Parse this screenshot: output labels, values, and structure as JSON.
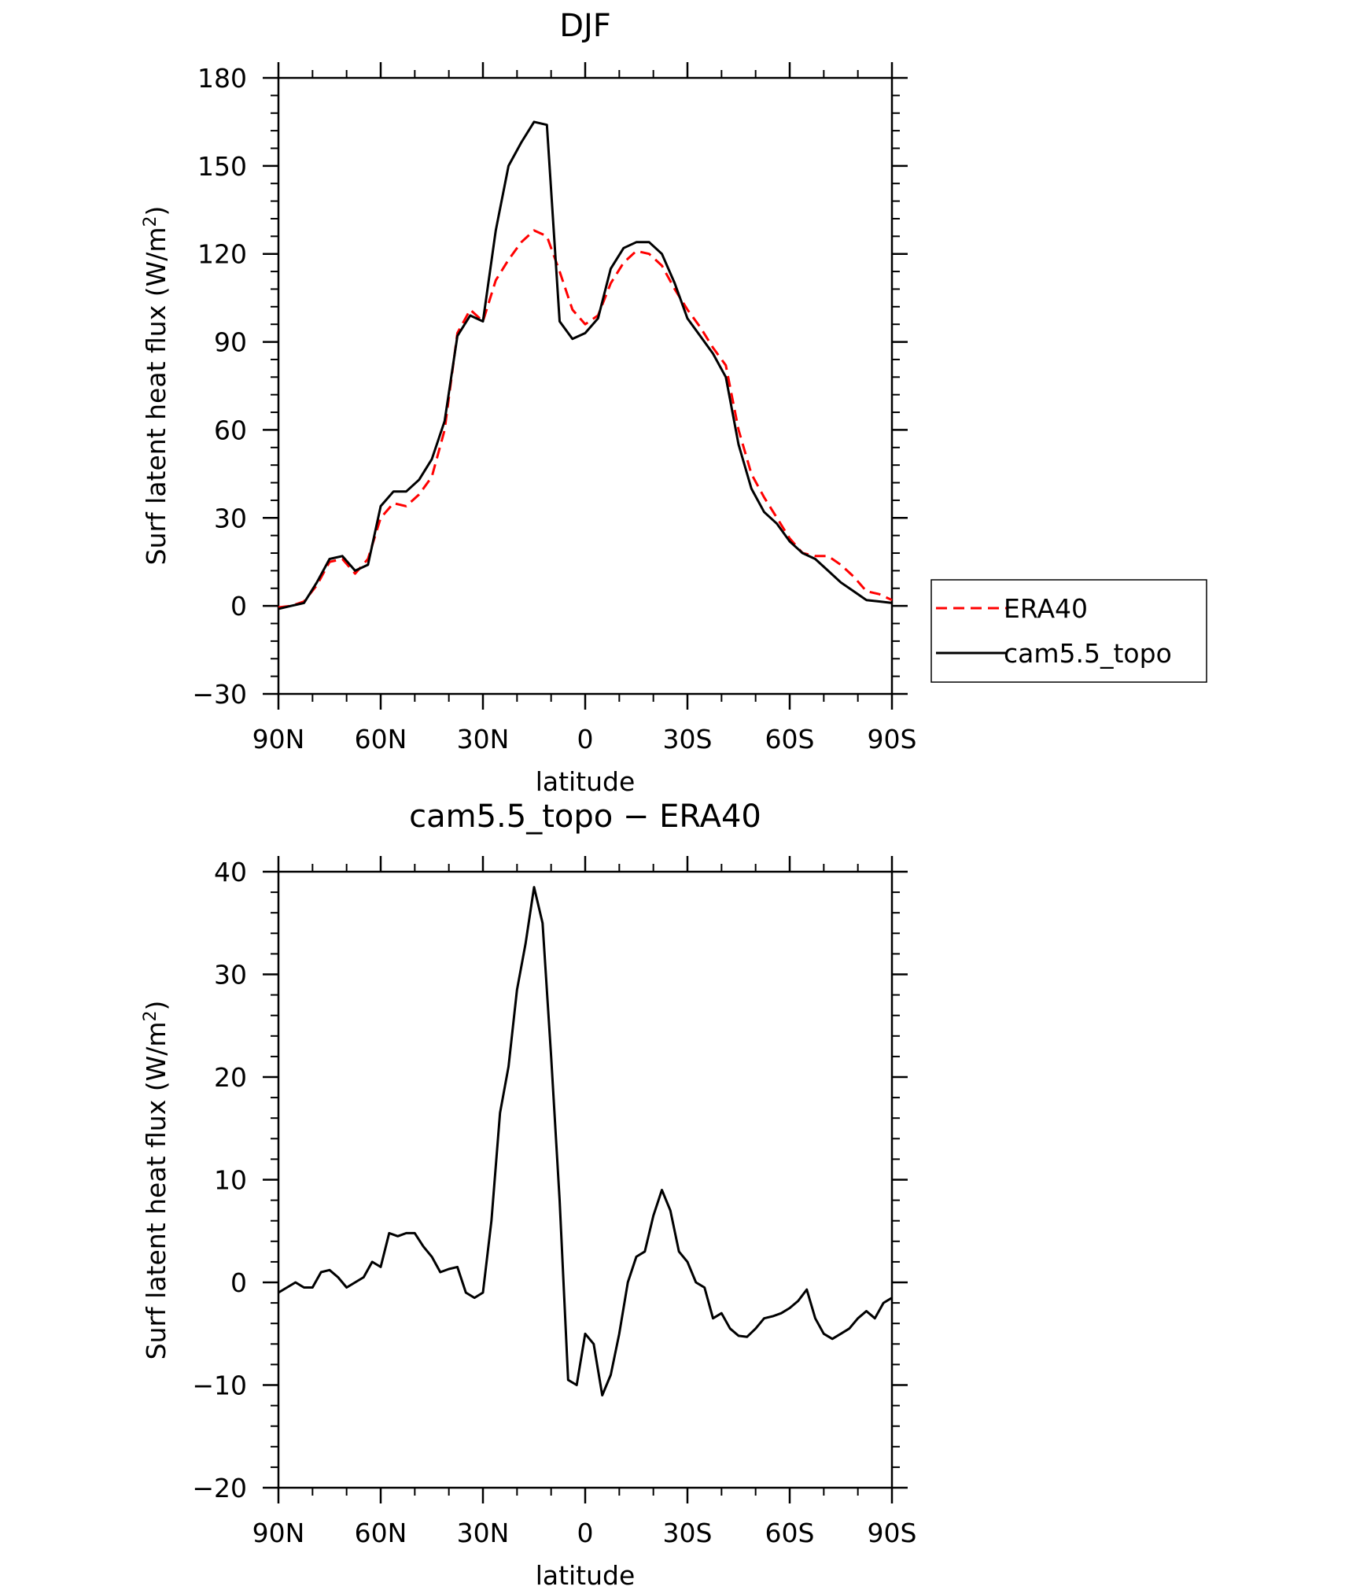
{
  "chart_data": [
    {
      "type": "line",
      "title": "DJF",
      "xlabel": "latitude",
      "ylabel": "Surf latent heat flux (W/m",
      "ylabel_superscript": "2",
      "ylabel_suffix": ")",
      "x_ticks": [
        "90N",
        "60N",
        "30N",
        "0",
        "30S",
        "60S",
        "90S"
      ],
      "xlim": [
        -90,
        90
      ],
      "ylim": [
        -30,
        180
      ],
      "y_ticks": [
        -30,
        0,
        30,
        60,
        90,
        120,
        150,
        180
      ],
      "y_tick_labels": [
        "−30",
        "0",
        "30",
        "60",
        "90",
        "120",
        "150",
        "180"
      ],
      "legend_position": "right",
      "x": [
        -90,
        -86.25,
        -82.5,
        -78.75,
        -75,
        -71.25,
        -67.5,
        -63.75,
        -60,
        -56.25,
        -52.5,
        -48.75,
        -45,
        -41.25,
        -37.5,
        -33.75,
        -30,
        -26.25,
        -22.5,
        -18.75,
        -15,
        -11.25,
        -7.5,
        -3.75,
        0,
        3.75,
        7.5,
        11.25,
        15,
        18.75,
        22.5,
        26.25,
        30,
        33.75,
        37.5,
        41.25,
        45,
        48.75,
        52.5,
        56.25,
        60,
        63.75,
        67.5,
        71.25,
        75,
        78.75,
        82.5,
        86.25,
        90
      ],
      "series": [
        {
          "name": "ERA40",
          "color": "#ff0000",
          "dash": "dashed",
          "values": [
            -0.5,
            0,
            1.5,
            7,
            15,
            16,
            11,
            16,
            30,
            35,
            34,
            38,
            44,
            60,
            93,
            101,
            97,
            111,
            118,
            124,
            128,
            126,
            114,
            101,
            96,
            99,
            110,
            117,
            121,
            120,
            116,
            108,
            101,
            95,
            88,
            82,
            60,
            45,
            37,
            30,
            23,
            18,
            17,
            17,
            14,
            10,
            5,
            4,
            2
          ]
        },
        {
          "name": "cam5.5_topo",
          "color": "#000000",
          "dash": "solid",
          "values": [
            -1,
            0,
            1,
            8,
            16,
            17,
            12,
            14,
            34,
            39,
            39,
            43,
            50,
            63,
            92,
            99,
            97,
            128,
            150,
            158,
            165,
            164,
            97,
            91,
            93,
            98,
            115,
            122,
            124,
            124,
            120,
            110,
            98,
            92,
            86,
            78,
            55,
            40,
            32,
            28,
            22,
            18,
            16,
            12,
            8,
            5,
            2,
            1.5,
            1
          ]
        }
      ]
    },
    {
      "type": "line",
      "title": "cam5.5_topo − ERA40",
      "xlabel": "latitude",
      "ylabel": "Surf latent heat flux (W/m",
      "ylabel_superscript": "2",
      "ylabel_suffix": ")",
      "x_ticks": [
        "90N",
        "60N",
        "30N",
        "0",
        "30S",
        "60S",
        "90S"
      ],
      "xlim": [
        -90,
        90
      ],
      "ylim": [
        -20,
        40
      ],
      "y_ticks": [
        -20,
        -10,
        0,
        10,
        20,
        30,
        40
      ],
      "y_tick_labels": [
        "−20",
        "−10",
        "0",
        "10",
        "20",
        "30",
        "40"
      ],
      "x": [
        -90,
        -87.5,
        -85,
        -82.5,
        -80,
        -77.5,
        -75,
        -72.5,
        -70,
        -67.5,
        -65,
        -62.5,
        -60,
        -57.5,
        -55,
        -52.5,
        -50,
        -47.5,
        -45,
        -42.5,
        -40,
        -37.5,
        -35,
        -32.5,
        -30,
        -27.5,
        -25,
        -22.5,
        -20,
        -17.5,
        -15,
        -12.5,
        -10,
        -7.5,
        -5,
        -2.5,
        0,
        2.5,
        5,
        7.5,
        10,
        12.5,
        15,
        17.5,
        20,
        22.5,
        25,
        27.5,
        30,
        32.5,
        35,
        37.5,
        40,
        42.5,
        45,
        47.5,
        50,
        52.5,
        55,
        57.5,
        60,
        62.5,
        65,
        67.5,
        70,
        72.5,
        75,
        77.5,
        80,
        82.5,
        85,
        87.5,
        90
      ],
      "series": [
        {
          "name": "",
          "color": "#000000",
          "dash": "solid",
          "values": [
            -1,
            -0.5,
            0,
            -0.5,
            -0.5,
            1,
            1.2,
            0.5,
            -0.5,
            0,
            0.5,
            2,
            1.5,
            4.8,
            4.5,
            4.8,
            4.8,
            3.5,
            2.5,
            1,
            1.3,
            1.5,
            -1,
            -1.5,
            -1,
            6,
            16.5,
            21,
            28.5,
            33,
            38.5,
            35,
            22,
            8,
            -9.5,
            -10,
            -5,
            -6,
            -11,
            -9,
            -5,
            0,
            2.5,
            3,
            6.5,
            9,
            7,
            3,
            2,
            0,
            -0.5,
            -3.5,
            -3,
            -4.5,
            -5.2,
            -5.3,
            -4.5,
            -3.5,
            -3.3,
            -3,
            -2.5,
            -1.8,
            -0.7,
            -3.5,
            -5,
            -5.5,
            -5,
            -4.5,
            -3.5,
            -2.8,
            -3.5,
            -2,
            -1.5
          ]
        }
      ]
    }
  ]
}
